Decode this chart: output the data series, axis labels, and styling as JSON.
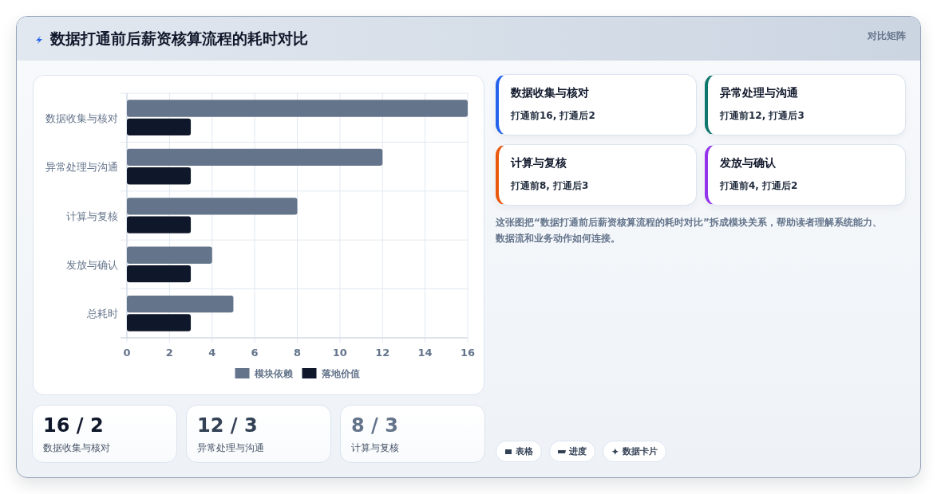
{
  "chart_data": [
    {
      "type": "other",
      "title": "数据打通前后薪资核算流程的耗时对比",
      "subtitle": "对比矩阵"
    },
    {
      "type": "bar",
      "orientation": "horizontal",
      "categories": [
        "数据收集与核对",
        "异常处理与沟通",
        "计算与复核",
        "发放与确认",
        "总耗时"
      ],
      "series": [
        {
          "name": "模块依赖",
          "color": "#64748b",
          "values": [
            16,
            12,
            8,
            4,
            5
          ]
        },
        {
          "name": "落地价值",
          "color": "#0f172a",
          "values": [
            3,
            3,
            3,
            3,
            3
          ]
        }
      ],
      "xlim": [
        0,
        16
      ],
      "xticks": [
        0,
        2,
        4,
        6,
        8,
        10,
        12,
        14,
        16
      ],
      "grid": true,
      "legend": "bottom"
    },
    {
      "type": "other",
      "categories": [
        "数据收集与核对",
        "异常处理与沟通",
        "计算与复核",
        "发放与确认"
      ],
      "annotations": [
        "打通前16, 打通后2",
        "打通前12, 打通后3",
        "打通前8, 打通后3",
        "打通前4, 打通后2"
      ]
    },
    {
      "type": "other",
      "annotations": [
        "这张图把“数据打通前后薪资核算流程的耗时对比”拆成模块关系，帮助读者理解系统能力、数据流和业务动作如何连接。"
      ]
    },
    {
      "type": "other",
      "categories": [
        "数据收集与核对",
        "异常处理与沟通",
        "计算与复核"
      ],
      "annotations": [
        "16 / 2",
        "12 / 3",
        "8 / 3"
      ]
    },
    {
      "type": "other",
      "annotations": [
        "表格",
        "进度",
        "数据卡片"
      ]
    }
  ]
}
